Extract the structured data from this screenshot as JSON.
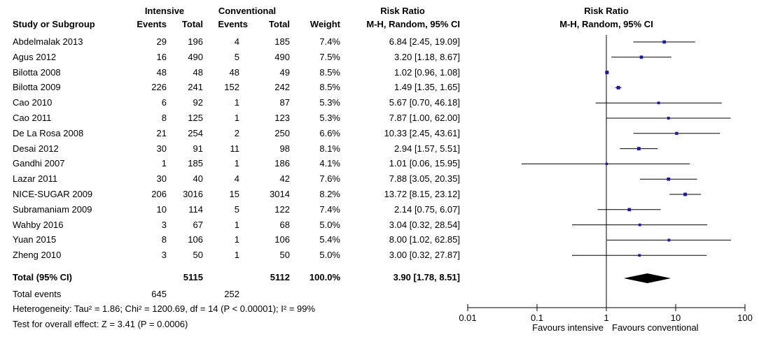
{
  "headers": {
    "study": "Study or Subgroup",
    "group1": "Intensive",
    "group2": "Conventional",
    "events": "Events",
    "total": "Total",
    "weight": "Weight",
    "rr_title": "Risk Ratio",
    "rr_method": "M-H, Random, 95% CI"
  },
  "studies": [
    {
      "name": "Abdelmalak 2013",
      "e1": "29",
      "t1": "196",
      "e2": "4",
      "t2": "185",
      "weight": "7.4%",
      "ci": "6.84 [2.45, 19.09]"
    },
    {
      "name": "Agus 2012",
      "e1": "16",
      "t1": "490",
      "e2": "5",
      "t2": "490",
      "weight": "7.5%",
      "ci": "3.20 [1.18, 8.67]"
    },
    {
      "name": "Bilotta 2008",
      "e1": "48",
      "t1": "48",
      "e2": "48",
      "t2": "49",
      "weight": "8.5%",
      "ci": "1.02 [0.96, 1.08]"
    },
    {
      "name": "Bilotta 2009",
      "e1": "226",
      "t1": "241",
      "e2": "152",
      "t2": "242",
      "weight": "8.5%",
      "ci": "1.49 [1.35, 1.65]"
    },
    {
      "name": "Cao 2010",
      "e1": "6",
      "t1": "92",
      "e2": "1",
      "t2": "87",
      "weight": "5.3%",
      "ci": "5.67 [0.70, 46.18]"
    },
    {
      "name": "Cao 2011",
      "e1": "8",
      "t1": "125",
      "e2": "1",
      "t2": "123",
      "weight": "5.3%",
      "ci": "7.87 [1.00, 62.00]"
    },
    {
      "name": "De La Rosa 2008",
      "e1": "21",
      "t1": "254",
      "e2": "2",
      "t2": "250",
      "weight": "6.6%",
      "ci": "10.33 [2.45, 43.61]"
    },
    {
      "name": "Desai 2012",
      "e1": "30",
      "t1": "91",
      "e2": "11",
      "t2": "98",
      "weight": "8.1%",
      "ci": "2.94 [1.57, 5.51]"
    },
    {
      "name": "Gandhi 2007",
      "e1": "1",
      "t1": "185",
      "e2": "1",
      "t2": "186",
      "weight": "4.1%",
      "ci": "1.01 [0.06, 15.95]"
    },
    {
      "name": "Lazar 2011",
      "e1": "30",
      "t1": "40",
      "e2": "4",
      "t2": "42",
      "weight": "7.6%",
      "ci": "7.88 [3.05, 20.35]"
    },
    {
      "name": "NICE-SUGAR 2009",
      "e1": "206",
      "t1": "3016",
      "e2": "15",
      "t2": "3014",
      "weight": "8.2%",
      "ci": "13.72 [8.15, 23.12]"
    },
    {
      "name": "Subramaniam 2009",
      "e1": "10",
      "t1": "114",
      "e2": "5",
      "t2": "122",
      "weight": "7.4%",
      "ci": "2.14 [0.75, 6.07]"
    },
    {
      "name": "Wahby 2016",
      "e1": "3",
      "t1": "67",
      "e2": "1",
      "t2": "68",
      "weight": "5.0%",
      "ci": "3.04 [0.32, 28.54]"
    },
    {
      "name": "Yuan 2015",
      "e1": "8",
      "t1": "106",
      "e2": "1",
      "t2": "106",
      "weight": "5.4%",
      "ci": "8.00 [1.02, 62.85]"
    },
    {
      "name": "Zheng 2010",
      "e1": "3",
      "t1": "50",
      "e2": "1",
      "t2": "50",
      "weight": "5.0%",
      "ci": "3.00 [0.32, 27.87]"
    }
  ],
  "total": {
    "label": "Total (95% CI)",
    "t1": "5115",
    "t2": "5112",
    "weight": "100.0%",
    "ci": "3.90 [1.78, 8.51]"
  },
  "total_events": {
    "label": "Total events",
    "e1": "645",
    "e2": "252"
  },
  "heterogeneity": "Heterogeneity: Tau² = 1.86; Chi² = 1200.69, df = 14 (P < 0.00001); I² = 99%",
  "overall_effect": "Test for overall effect: Z = 3.41 (P = 0.0006)",
  "colors": {
    "point": "#1a1aa6",
    "line": "#000000",
    "diamond": "#000000"
  },
  "chart_data": {
    "type": "forest",
    "title": "Risk Ratio",
    "subtitle": "M-H, Random, 95% CI",
    "scale": "log",
    "xlim": [
      0.01,
      100
    ],
    "ticks": [
      {
        "value": 0.01,
        "label": "0.01"
      },
      {
        "value": 0.1,
        "label": "0.1"
      },
      {
        "value": 1,
        "label": "1"
      },
      {
        "value": 10,
        "label": "10"
      },
      {
        "value": 100,
        "label": "100"
      }
    ],
    "xlabel_left": "Favours intensive",
    "xlabel_right": "Favours conventional",
    "reference_line": 1,
    "points": [
      {
        "study": "Abdelmalak 2013",
        "rr": 6.84,
        "lower": 2.45,
        "upper": 19.09,
        "weight": 7.4
      },
      {
        "study": "Agus 2012",
        "rr": 3.2,
        "lower": 1.18,
        "upper": 8.67,
        "weight": 7.5
      },
      {
        "study": "Bilotta 2008",
        "rr": 1.02,
        "lower": 0.96,
        "upper": 1.08,
        "weight": 8.5
      },
      {
        "study": "Bilotta 2009",
        "rr": 1.49,
        "lower": 1.35,
        "upper": 1.65,
        "weight": 8.5
      },
      {
        "study": "Cao 2010",
        "rr": 5.67,
        "lower": 0.7,
        "upper": 46.18,
        "weight": 5.3
      },
      {
        "study": "Cao 2011",
        "rr": 7.87,
        "lower": 1.0,
        "upper": 62.0,
        "weight": 5.3
      },
      {
        "study": "De La Rosa 2008",
        "rr": 10.33,
        "lower": 2.45,
        "upper": 43.61,
        "weight": 6.6
      },
      {
        "study": "Desai 2012",
        "rr": 2.94,
        "lower": 1.57,
        "upper": 5.51,
        "weight": 8.1
      },
      {
        "study": "Gandhi 2007",
        "rr": 1.01,
        "lower": 0.06,
        "upper": 15.95,
        "weight": 4.1
      },
      {
        "study": "Lazar 2011",
        "rr": 7.88,
        "lower": 3.05,
        "upper": 20.35,
        "weight": 7.6
      },
      {
        "study": "NICE-SUGAR 2009",
        "rr": 13.72,
        "lower": 8.15,
        "upper": 23.12,
        "weight": 8.2
      },
      {
        "study": "Subramaniam 2009",
        "rr": 2.14,
        "lower": 0.75,
        "upper": 6.07,
        "weight": 7.4
      },
      {
        "study": "Wahby 2016",
        "rr": 3.04,
        "lower": 0.32,
        "upper": 28.54,
        "weight": 5.0
      },
      {
        "study": "Yuan 2015",
        "rr": 8.0,
        "lower": 1.02,
        "upper": 62.85,
        "weight": 5.4
      },
      {
        "study": "Zheng 2010",
        "rr": 3.0,
        "lower": 0.32,
        "upper": 27.87,
        "weight": 5.0
      }
    ],
    "pooled": {
      "rr": 3.9,
      "lower": 1.78,
      "upper": 8.51
    }
  }
}
